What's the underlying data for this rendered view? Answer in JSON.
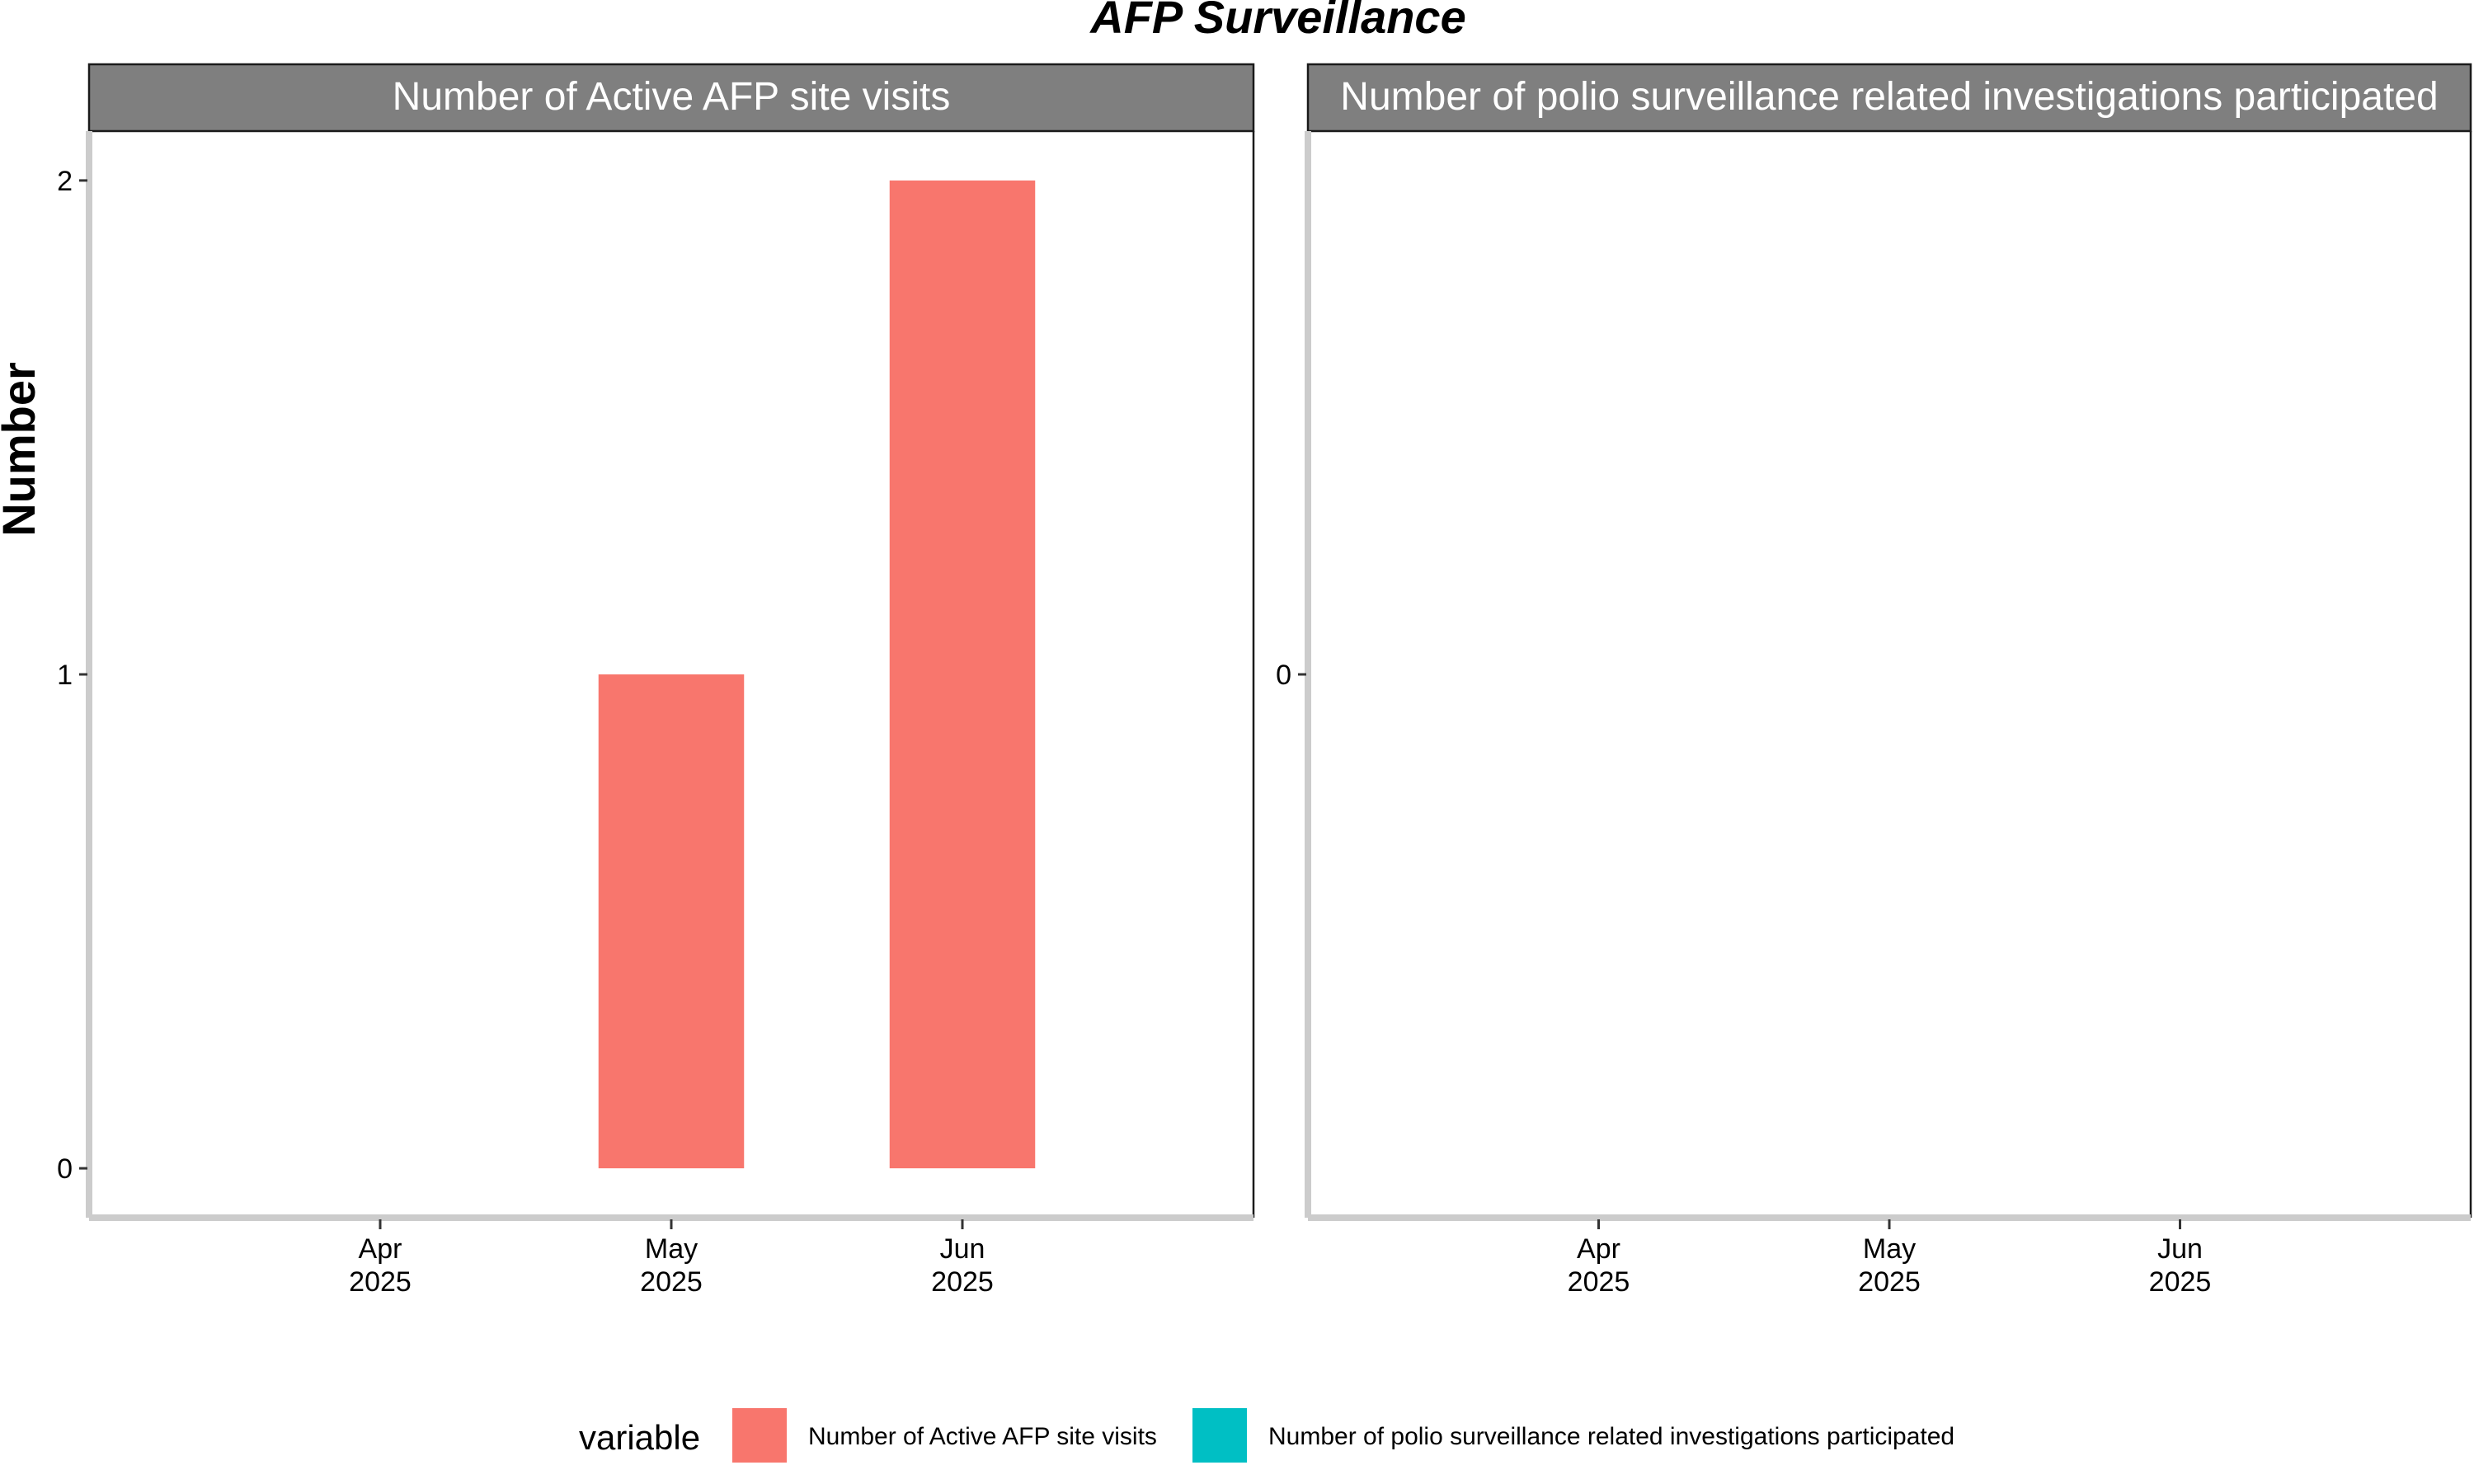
{
  "chart_data": {
    "type": "bar",
    "title": "AFP Surveillance",
    "xlabel": "",
    "ylabel": "Number",
    "grid": false,
    "legend_position": "bottom",
    "legend_title": "variable",
    "legend_entries": [
      {
        "label": "Number of Active AFP site visits",
        "color": "#F8766D"
      },
      {
        "label": "Number of polio surveillance related investigations participated",
        "color": "#00BFC4"
      }
    ],
    "categories": [
      "Apr\n2025",
      "May\n2025",
      "Jun\n2025"
    ],
    "facets": [
      {
        "strip_label": "Number of Active AFP site visits",
        "color": "#F8766D",
        "ylim": [
          -0.1,
          2.1
        ],
        "yticks": [
          0,
          1,
          2
        ],
        "values": [
          0,
          1,
          2
        ]
      },
      {
        "strip_label": "Number of polio surveillance related investigations participated",
        "color": "#00BFC4",
        "ylim": [
          -1,
          1
        ],
        "yticks": [
          0
        ],
        "values": [
          0,
          0,
          0
        ]
      }
    ]
  }
}
